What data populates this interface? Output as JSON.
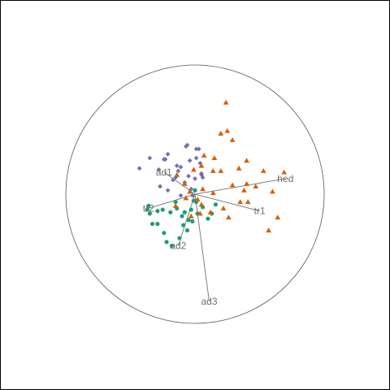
{
  "chart_data": {
    "type": "scatter",
    "title": "",
    "xlabel": "",
    "ylabel": "",
    "xlim": [
      -1,
      1
    ],
    "ylim": [
      -1,
      1
    ],
    "grid": false,
    "unit_circle": true,
    "colors": {
      "frame": "#000000",
      "circle": "#555555",
      "loading": "#7f7f7f",
      "loading_text": "#6e6e6e"
    },
    "loadings": [
      {
        "label": "ad1",
        "x": -0.24,
        "y": 0.17
      },
      {
        "label": "hed",
        "x": 0.7,
        "y": 0.12
      },
      {
        "label": "tr2",
        "x": -0.36,
        "y": -0.11
      },
      {
        "label": "tr1",
        "x": 0.5,
        "y": -0.13
      },
      {
        "label": "ad2",
        "x": -0.13,
        "y": -0.4
      },
      {
        "label": "ad3",
        "x": 0.11,
        "y": -0.83
      }
    ],
    "series": [
      {
        "color": "#7570b3",
        "marker": "diamond",
        "x": [
          -0.43,
          -0.35,
          -0.23,
          -0.28,
          -0.24,
          -0.21,
          -0.15,
          -0.14,
          -0.07,
          -0.04,
          0.01,
          0.04,
          0.05,
          0.06,
          0.03,
          -0.06,
          -0.13,
          -0.11,
          -0.05,
          0.0,
          -0.03,
          -0.08,
          -0.17,
          -0.27,
          -0.21,
          -0.02,
          -0.11,
          0.05,
          0.01
        ],
        "y": [
          0.2,
          0.28,
          0.27,
          0.19,
          0.27,
          0.31,
          0.13,
          0.22,
          0.37,
          0.26,
          0.28,
          0.24,
          0.15,
          0.13,
          0.35,
          0.38,
          0.18,
          0.21,
          0.14,
          0.12,
          0.04,
          0.09,
          0.11,
          0.06,
          0.03,
          -0.01,
          -0.01,
          0.16,
          0.35
        ]
      },
      {
        "color": "#1b9e77",
        "marker": "circle",
        "x": [
          -0.36,
          -0.37,
          -0.35,
          -0.33,
          -0.29,
          -0.25,
          -0.19,
          -0.15,
          -0.08,
          -0.06,
          -0.02,
          0.02,
          0.01,
          -0.03,
          -0.12,
          -0.18,
          -0.24,
          -0.22,
          -0.1,
          -0.05,
          -0.14,
          0.13,
          0.16,
          0.1,
          0.06,
          -0.01,
          -0.09,
          -0.29,
          0.0
        ],
        "y": [
          -0.09,
          -0.12,
          -0.15,
          -0.23,
          -0.23,
          -0.12,
          -0.14,
          -0.06,
          -0.14,
          -0.28,
          -0.21,
          -0.15,
          -0.06,
          -0.12,
          -0.34,
          -0.4,
          -0.3,
          -0.37,
          -0.17,
          -0.2,
          -0.11,
          -0.15,
          -0.08,
          -0.19,
          -0.1,
          -0.05,
          -0.24,
          -0.13,
          0.03
        ]
      },
      {
        "color": "#d95f02",
        "marker": "triangle",
        "x": [
          0.24,
          0.2,
          0.29,
          0.15,
          0.07,
          0.05,
          -0.01,
          0.14,
          0.34,
          0.4,
          0.53,
          0.6,
          0.64,
          0.69,
          0.47,
          0.29,
          0.2,
          0.14,
          0.06,
          -0.04,
          -0.08,
          0.02,
          0.22,
          0.35,
          0.26,
          0.12,
          0.25,
          0.57,
          0.41,
          0.38,
          -0.07,
          -0.14,
          0.05,
          -0.03,
          0.04,
          -0.15,
          0.4
        ],
        "y": [
          0.71,
          0.47,
          0.42,
          0.28,
          0.3,
          0.22,
          0.19,
          0.18,
          0.2,
          0.26,
          0.18,
          0.02,
          -0.18,
          0.17,
          0.06,
          0.07,
          0.18,
          0.01,
          0.04,
          0.02,
          0.08,
          -0.04,
          -0.11,
          -0.06,
          -0.18,
          -0.14,
          0.49,
          -0.28,
          -0.06,
          0.03,
          -0.03,
          0.15,
          -0.08,
          -0.17,
          -0.15,
          -0.09,
          0.08
        ]
      }
    ]
  }
}
